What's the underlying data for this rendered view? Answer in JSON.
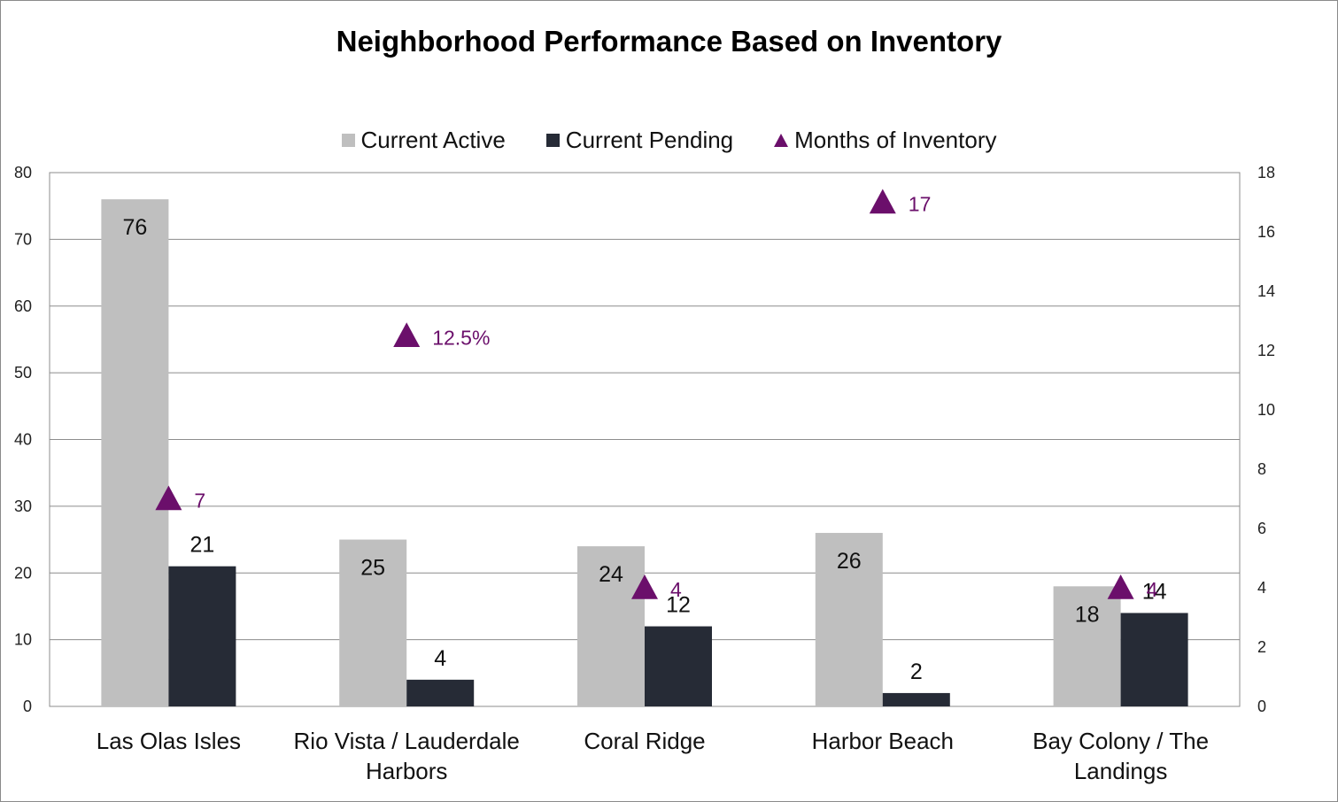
{
  "chart_data": {
    "type": "bar",
    "title": "Neighborhood Performance Based on Inventory",
    "categories": [
      [
        "Las Olas Isles"
      ],
      [
        "Rio Vista / Lauderdale",
        "Harbors"
      ],
      [
        "Coral Ridge"
      ],
      [
        "Harbor Beach"
      ],
      [
        "Bay Colony / The",
        "Landings"
      ]
    ],
    "series": [
      {
        "name": "Current Active",
        "type": "bar",
        "axis": "left",
        "color": "#bfbfbf",
        "values": [
          76,
          25,
          24,
          26,
          18
        ],
        "labels": [
          "76",
          "25",
          "24",
          "26",
          "18"
        ]
      },
      {
        "name": "Current Pending",
        "type": "bar",
        "axis": "left",
        "color": "#262b36",
        "values": [
          21,
          4,
          12,
          2,
          14
        ],
        "labels": [
          "21",
          "4",
          "12",
          "2",
          "14"
        ]
      },
      {
        "name": "Months of Inventory",
        "type": "scatter",
        "marker": "triangle",
        "axis": "right",
        "color": "#6b0f6b",
        "values": [
          7,
          12.5,
          4,
          17,
          4
        ],
        "labels": [
          "7",
          "12.5%",
          "4",
          "17",
          "4"
        ]
      }
    ],
    "y_left": {
      "min": 0,
      "max": 80,
      "ticks": [
        0,
        10,
        20,
        30,
        40,
        50,
        60,
        70,
        80
      ]
    },
    "y_right": {
      "min": 0,
      "max": 18,
      "ticks": [
        0,
        2,
        4,
        6,
        8,
        10,
        12,
        14,
        16,
        18
      ]
    },
    "grid": true,
    "legend_position": "top-center"
  }
}
